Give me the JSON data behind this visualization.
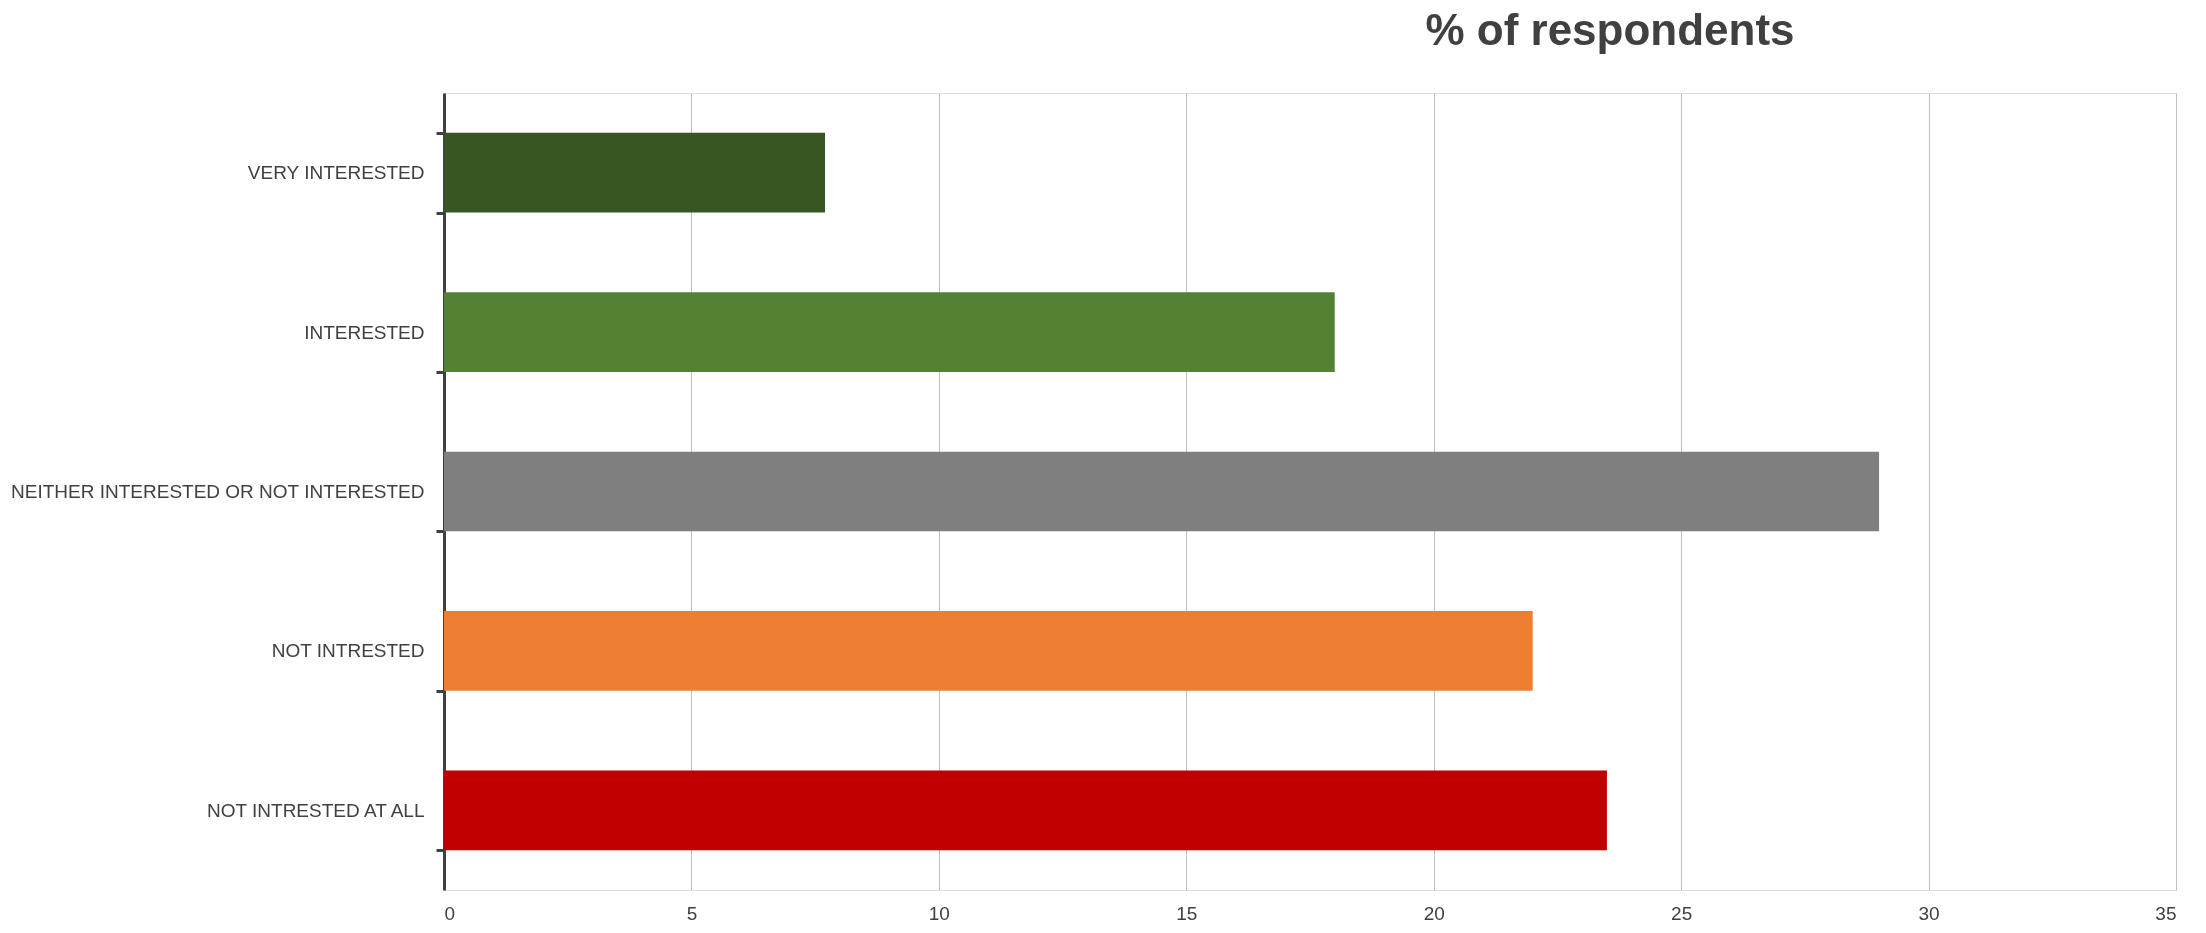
{
  "chart_data": {
    "type": "bar",
    "orientation": "horizontal",
    "title": "% of respondents",
    "categories": [
      "VERY INTERESTED",
      "INTERESTED",
      "NEITHER INTERESTED OR NOT INTERESTED",
      "NOT INTRESTED",
      "NOT INTRESTED AT ALL"
    ],
    "values": [
      7.7,
      18,
      29,
      22,
      23.5
    ],
    "colors": [
      "#375623",
      "#548235",
      "#7f7f7f",
      "#ed7d31",
      "#c00000"
    ],
    "xlim": [
      0,
      35
    ],
    "xticks": [
      0,
      5,
      10,
      15,
      20,
      25,
      30,
      35
    ],
    "grid": "x"
  }
}
